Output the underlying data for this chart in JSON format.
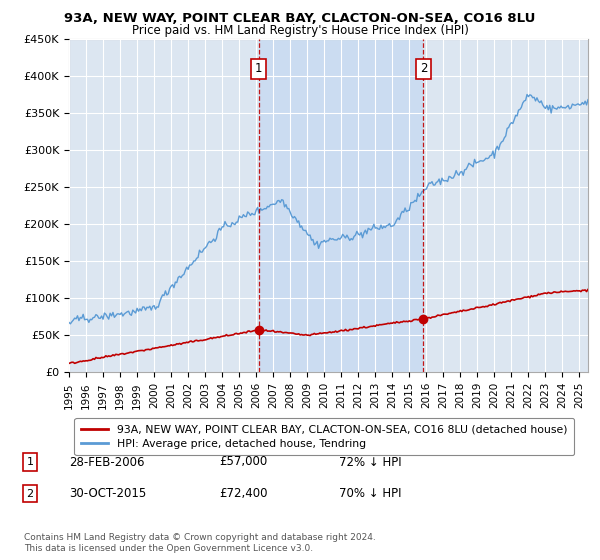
{
  "title1": "93A, NEW WAY, POINT CLEAR BAY, CLACTON-ON-SEA, CO16 8LU",
  "title2": "Price paid vs. HM Land Registry's House Price Index (HPI)",
  "hpi_color": "#5b9bd5",
  "price_color": "#c00000",
  "vline_color": "#c00000",
  "plot_bg_color": "#dce6f1",
  "shade_color": "#c5d9f1",
  "ylim": [
    0,
    450000
  ],
  "yticks": [
    0,
    50000,
    100000,
    150000,
    200000,
    250000,
    300000,
    350000,
    400000,
    450000
  ],
  "ytick_labels": [
    "£0",
    "£50K",
    "£100K",
    "£150K",
    "£200K",
    "£250K",
    "£300K",
    "£350K",
    "£400K",
    "£450K"
  ],
  "legend_label1": "93A, NEW WAY, POINT CLEAR BAY, CLACTON-ON-SEA, CO16 8LU (detached house)",
  "legend_label2": "HPI: Average price, detached house, Tendring",
  "sale1_date": "28-FEB-2006",
  "sale1_price": "£57,000",
  "sale1_hpi": "72% ↓ HPI",
  "sale1_year": 2006.15,
  "sale1_value": 57000,
  "sale2_date": "30-OCT-2015",
  "sale2_price": "£72,400",
  "sale2_hpi": "70% ↓ HPI",
  "sale2_year": 2015.83,
  "sale2_value": 72400,
  "footnote": "Contains HM Land Registry data © Crown copyright and database right 2024.\nThis data is licensed under the Open Government Licence v3.0.",
  "xmin": 1995.0,
  "xmax": 2025.5
}
